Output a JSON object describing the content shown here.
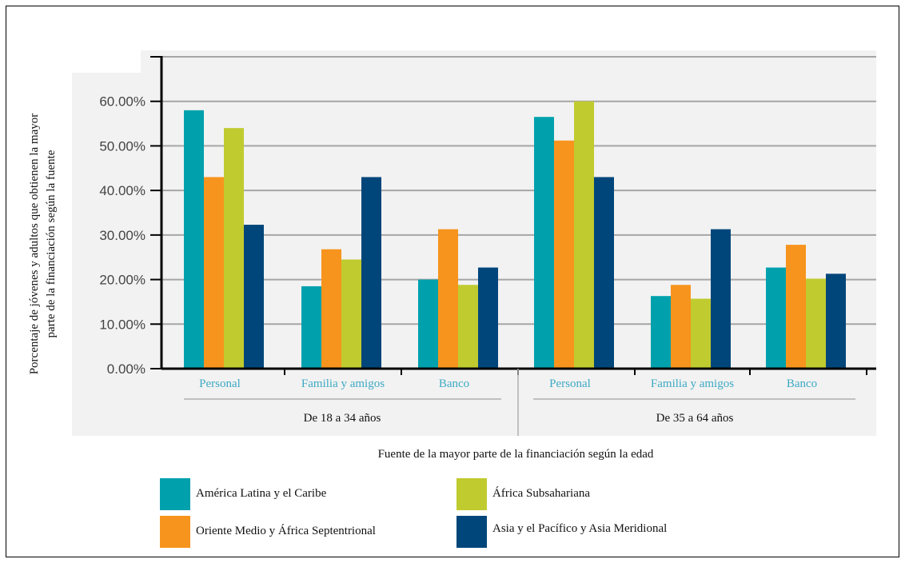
{
  "chart_data": {
    "type": "bar",
    "ylabel": "Porcentaje de jóvenes y adultos que obtienen la mayor parte de la financiación según la fuente",
    "ylabel_lines": [
      "Porcentaje de jóvenes y adultos que obtienen la mayor",
      "parte de la financiación según la fuente"
    ],
    "xlabel": "Fuente de la mayor parte de la financiación según la edad",
    "ylim": [
      0,
      0.7
    ],
    "yticks": [
      "0.00%",
      "10.00%",
      "20.00%",
      "30.00%",
      "40.00%",
      "50.00%",
      "60.00%"
    ],
    "groups": [
      {
        "label": "De 18 a 34 años",
        "categories": [
          "Personal",
          "Familia y amigos",
          "Banco"
        ]
      },
      {
        "label": "De 35 a 64 años",
        "categories": [
          "Personal",
          "Familia y amigos",
          "Banco"
        ]
      }
    ],
    "series": [
      {
        "name": "América Latina y el Caribe",
        "color": "#00a1ad",
        "values": [
          0.58,
          0.185,
          0.2,
          0.565,
          0.163,
          0.227
        ]
      },
      {
        "name": "Oriente Medio y África Septentrional",
        "color": "#f7941d",
        "values": [
          0.43,
          0.268,
          0.313,
          0.512,
          0.188,
          0.278
        ]
      },
      {
        "name": "África Subsahariana",
        "color": "#c0cb2f",
        "values": [
          0.54,
          0.245,
          0.188,
          0.6,
          0.157,
          0.202
        ]
      },
      {
        "name": "Asia y el Pacífico y Asia Meridional",
        "color": "#00467a",
        "values": [
          0.323,
          0.43,
          0.227,
          0.43,
          0.313,
          0.213
        ]
      }
    ],
    "grid": true,
    "legend_position": "bottom"
  },
  "colors": {
    "tick_label_category": "#3da9c4",
    "panel_background": "#f2f2f2",
    "grid": "#a6a6a6"
  }
}
